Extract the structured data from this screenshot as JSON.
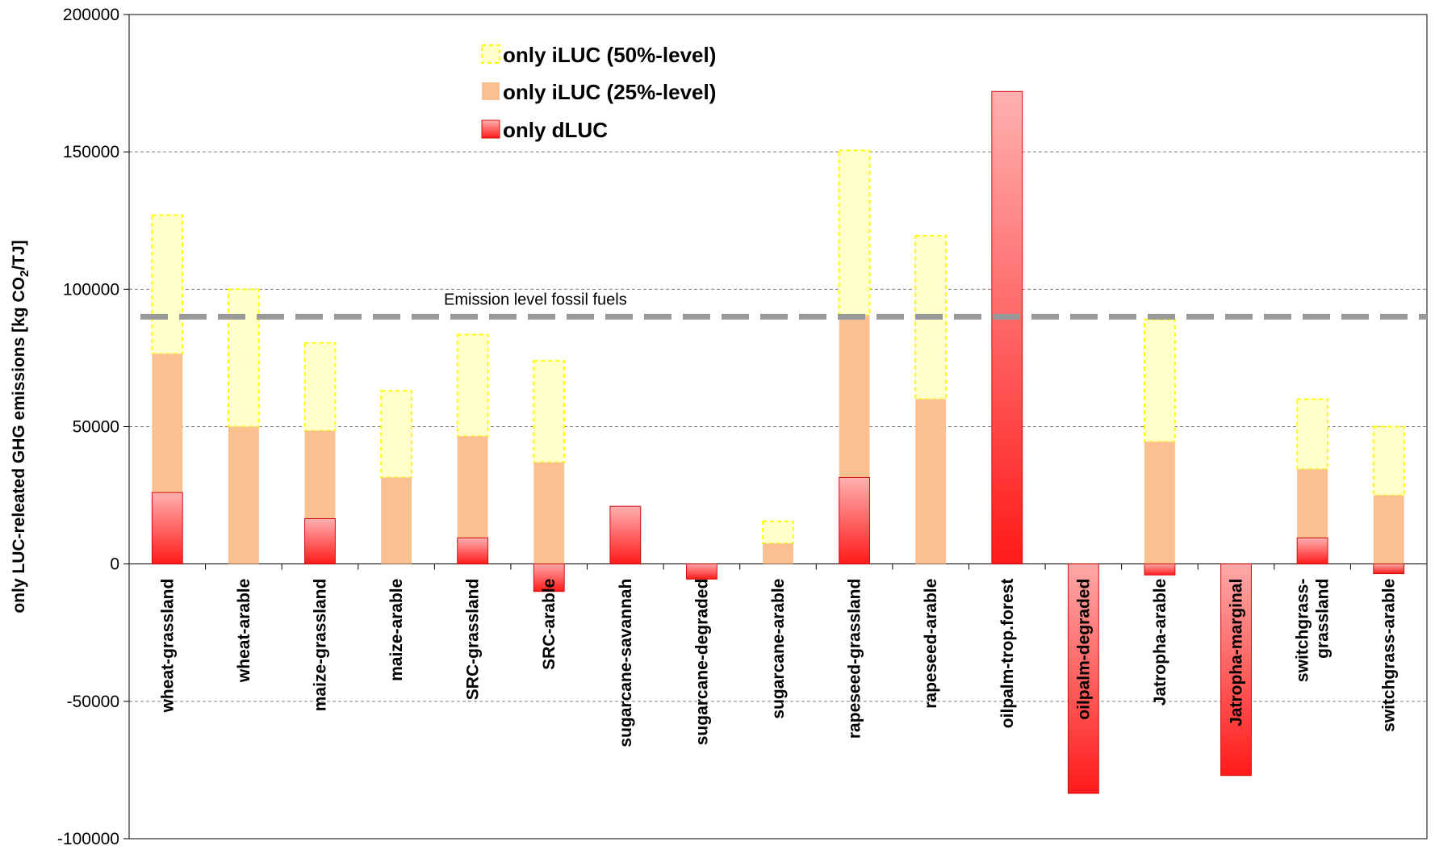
{
  "chart_data": {
    "type": "bar",
    "stacked": true,
    "ylabel": {
      "main": "only LUC-releated GHG emissions [kg CO",
      "sub": "2",
      "tail": "/TJ]"
    },
    "ylim": [
      -100000,
      200000
    ],
    "yticks": [
      -100000,
      -50000,
      0,
      50000,
      100000,
      150000,
      200000
    ],
    "ytick_labels": [
      "-100000",
      "-50000",
      "0",
      "50000",
      "100000",
      "150000",
      "200000"
    ],
    "grid": "horizontal dashed",
    "legend_position": "top-left",
    "categories": [
      [
        "wheat-grassland"
      ],
      [
        "wheat-arable"
      ],
      [
        "maize-grassland"
      ],
      [
        "maize-arable"
      ],
      [
        "SRC-grassland"
      ],
      [
        "SRC-arable"
      ],
      [
        "sugarcane-savannah"
      ],
      [
        "sugarcane-degraded"
      ],
      [
        "sugarcane-arable"
      ],
      [
        "rapeseed-grassland"
      ],
      [
        "rapeseed-arable"
      ],
      [
        "oilpalm-trop.forest"
      ],
      [
        "oilpalm-degraded"
      ],
      [
        "Jatropha-arable"
      ],
      [
        "Jatropha-marginal"
      ],
      [
        "switchgrass-",
        "grassland"
      ],
      [
        "switchgrass-arable"
      ]
    ],
    "series": [
      {
        "name": "only dLUC",
        "values": [
          26000,
          0,
          16500,
          0,
          9500,
          -10000,
          21000,
          -5500,
          0,
          31500,
          0,
          172000,
          -83500,
          -4000,
          -77000,
          9500,
          -3500
        ],
        "color": "#ff2020"
      },
      {
        "name": "only iLUC (25%-level)",
        "values": [
          50500,
          50000,
          32000,
          31500,
          37000,
          37000,
          0,
          0,
          7500,
          59000,
          60000,
          0,
          0,
          44500,
          0,
          25000,
          25000
        ],
        "color": "#fac090"
      },
      {
        "name": "only iLUC (50%-level)",
        "values": [
          50500,
          50000,
          32000,
          31500,
          37000,
          37000,
          0,
          0,
          8000,
          60000,
          59500,
          0,
          0,
          44500,
          0,
          25500,
          25000
        ],
        "color": "#ffffcc"
      }
    ],
    "legend": [
      {
        "label": "only iLUC (50%-level)",
        "key": "iluc50"
      },
      {
        "label": "only iLUC (25%-level)",
        "key": "iluc25"
      },
      {
        "label": "only dLUC",
        "key": "dluc"
      }
    ],
    "reference_line": {
      "label": "Emission level fossil fuels",
      "value": 90000,
      "color": "#999999"
    }
  }
}
